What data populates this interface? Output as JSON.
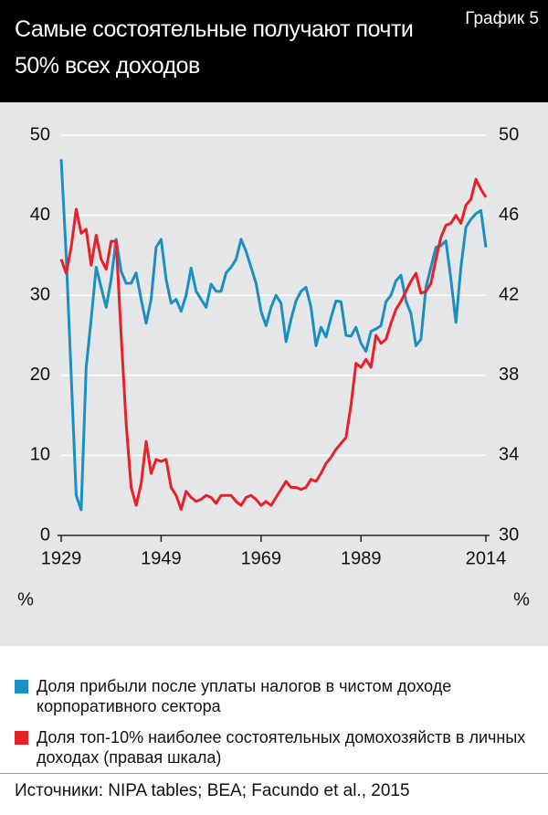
{
  "chart_data": {
    "type": "line",
    "title": "Самые состоятельные получают почти 50% всех доходов",
    "label": "График 5",
    "x": [
      1929,
      1930,
      1931,
      1932,
      1933,
      1934,
      1935,
      1936,
      1937,
      1938,
      1939,
      1940,
      1941,
      1942,
      1943,
      1944,
      1945,
      1946,
      1947,
      1948,
      1949,
      1950,
      1951,
      1952,
      1953,
      1954,
      1955,
      1956,
      1957,
      1958,
      1959,
      1960,
      1961,
      1962,
      1963,
      1964,
      1965,
      1966,
      1967,
      1968,
      1969,
      1970,
      1971,
      1972,
      1973,
      1974,
      1975,
      1976,
      1977,
      1978,
      1979,
      1980,
      1981,
      1982,
      1983,
      1984,
      1985,
      1986,
      1987,
      1988,
      1989,
      1990,
      1991,
      1992,
      1993,
      1994,
      1995,
      1996,
      1997,
      1998,
      1999,
      2000,
      2001,
      2002,
      2003,
      2004,
      2005,
      2006,
      2007,
      2008,
      2009,
      2010,
      2011,
      2012,
      2013,
      2014
    ],
    "xlim": [
      1929,
      2014
    ],
    "xticks": [
      1929,
      1949,
      1969,
      1989,
      2014
    ],
    "ylim": [
      0,
      50
    ],
    "yticks": [
      0,
      10,
      20,
      30,
      40,
      50
    ],
    "y2lim": [
      30,
      50
    ],
    "y2ticks": [
      30,
      34,
      38,
      42,
      46,
      50
    ],
    "y_unit": "%",
    "y2_unit": "%",
    "grid": true,
    "series": [
      {
        "name": "Доля прибыли после уплаты налогов в чистом доходе корпоративного сектора",
        "color": "#1b8ec2",
        "values": [
          47,
          35,
          20,
          5,
          3.2,
          21,
          27,
          33.5,
          31,
          28.5,
          32,
          37,
          33,
          31.5,
          31.5,
          32.8,
          29.5,
          26.5,
          29.5,
          36,
          37,
          32,
          29,
          29.5,
          28,
          30,
          33.4,
          30.5,
          29.5,
          28.5,
          31.4,
          30.5,
          30.5,
          32.8,
          33.5,
          34.5,
          37,
          35.5,
          33.5,
          31.5,
          28,
          26.2,
          28.5,
          30,
          29,
          24.2,
          27,
          29.3,
          30.5,
          31,
          28.5,
          23.7,
          26,
          24.8,
          27.2,
          29.3,
          29.2,
          25,
          24.9,
          26,
          24,
          23,
          25.5,
          25.8,
          26.2,
          29.2,
          30,
          31.8,
          32.5,
          29.3,
          27.7,
          23.7,
          24.5,
          31,
          33.5,
          36,
          36.2,
          36.8,
          32,
          26.6,
          33.5,
          38.5,
          39.5,
          40.2,
          40.6,
          36
        ]
      },
      {
        "name": "Доля топ-10% наиболее состоятельных домохозяйств в личных доходах (правая шкала)",
        "color": "#e8202a",
        "axis": "y2",
        "values": [
          43.8,
          43.1,
          44.4,
          46.3,
          45.1,
          45.3,
          43.5,
          45.0,
          43.8,
          43.3,
          44.7,
          44.7,
          40,
          35.6,
          32.4,
          31.5,
          32.6,
          34.7,
          33.1,
          33.8,
          33.7,
          33.8,
          32.4,
          32.0,
          31.3,
          32.2,
          31.9,
          31.7,
          31.8,
          32.0,
          31.9,
          31.6,
          32.0,
          32.0,
          32.0,
          31.7,
          31.5,
          31.9,
          32.0,
          31.8,
          31.5,
          31.7,
          31.5,
          31.9,
          32.3,
          32.7,
          32.4,
          32.4,
          32.3,
          32.4,
          32.8,
          32.7,
          33.1,
          33.6,
          33.9,
          34.3,
          34.6,
          34.9,
          36.5,
          38.6,
          38.4,
          38.8,
          38.4,
          40.0,
          39.6,
          39.8,
          40.6,
          41.3,
          41.7,
          42.2,
          42.7,
          43.1,
          42.1,
          42.2,
          42.6,
          43.8,
          44.9,
          45.5,
          45.6,
          46.0,
          45.6,
          46.5,
          46.8,
          47.8,
          47.3,
          46.9
        ]
      }
    ],
    "source": "Источники: NIPA tables; BEA; Facundo et al., 2015"
  }
}
